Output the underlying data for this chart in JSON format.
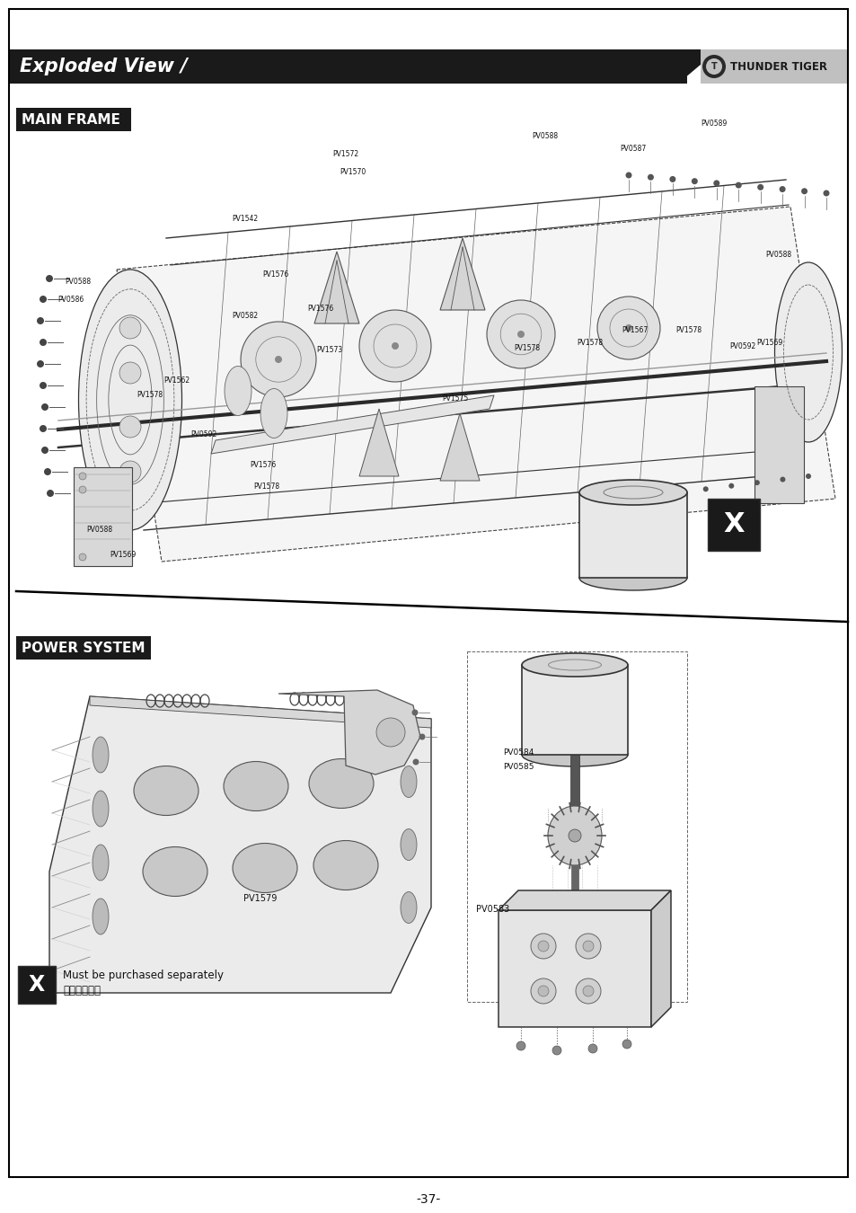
{
  "page_bg": "#ffffff",
  "border_color": "#000000",
  "header_bg": "#1a1a1a",
  "header_text": "Exploded View /",
  "header_text_color": "#ffffff",
  "logo_text": "THUNDER TIGER",
  "logo_bg": "#c0c0c0",
  "section1_title": "MAIN FRAME",
  "section2_title": "POWER SYSTEM",
  "section1_title_bg": "#1a1a1a",
  "section2_title_bg": "#1a1a1a",
  "section_title_color": "#ffffff",
  "page_number": "-37-",
  "footer_note_en": "Must be purchased separately",
  "footer_note_zh": "改裝品需另購",
  "main_frame_parts": [
    "PV0588",
    "PV0589",
    "PV0587",
    "PV0586",
    "PV1572",
    "PV1570",
    "PV1542",
    "PV1576",
    "PV0582",
    "PV1576",
    "PV1573",
    "PV1575",
    "PV1578",
    "PV1578",
    "PV1578",
    "PV1567",
    "PV1569",
    "PV0592",
    "PV0592",
    "PV1567",
    "PV1578",
    "PV0588",
    "PV0588",
    "PV1576",
    "PV1569",
    "PV1562",
    "PV0589"
  ],
  "power_system_parts": [
    "PV1579",
    "PV0584",
    "PV0585",
    "PV0583"
  ],
  "diagonal_line_color": "#000000",
  "drawing_color": "#000000",
  "light_gray": "#e0e0e0",
  "mid_gray": "#aaaaaa"
}
